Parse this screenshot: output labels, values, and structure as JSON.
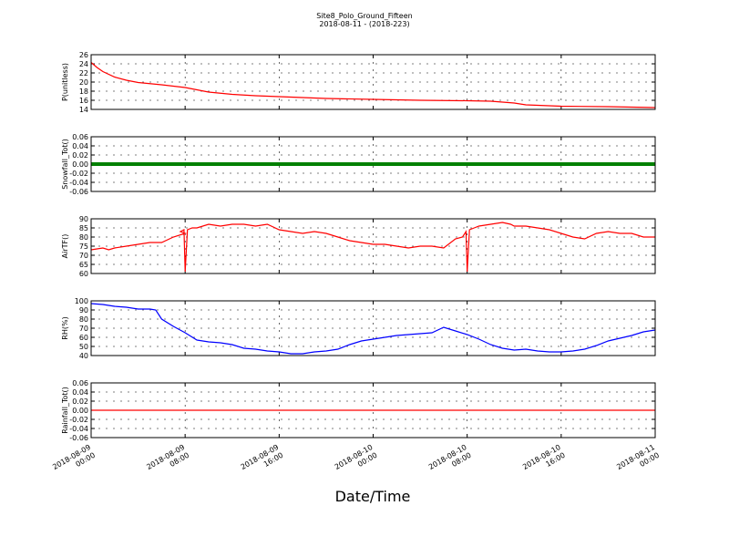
{
  "title": "Site8_Polo_Ground_Fifteen",
  "subtitle": "2018-08-11 - (2018-223)",
  "xlabel": "Date/Time",
  "x_ticks": [
    "2018-08-09 00:00",
    "2018-08-09 08:00",
    "2018-08-09 16:00",
    "2018-08-10 00:00",
    "2018-08-10 08:00",
    "2018-08-10 16:00",
    "2018-08-11 00:00"
  ],
  "chart_data": [
    {
      "type": "line",
      "ylabel": "P(unitless)",
      "color": "#ff0000",
      "ylim": [
        14,
        26
      ],
      "yticks": [
        14,
        16,
        18,
        20,
        22,
        24,
        26
      ],
      "grid": true,
      "x_hours": [
        0,
        0.5,
        1,
        2,
        3,
        4,
        6,
        8,
        9,
        10,
        12,
        14,
        16,
        18,
        20,
        24,
        28,
        32,
        34,
        36,
        37,
        40,
        44,
        48
      ],
      "values": [
        24.3,
        23.2,
        22.3,
        21.1,
        20.4,
        19.9,
        19.4,
        18.8,
        18.3,
        17.8,
        17.3,
        17.0,
        16.8,
        16.6,
        16.4,
        16.2,
        16.0,
        15.9,
        15.8,
        15.4,
        15.0,
        14.7,
        14.6,
        14.4
      ]
    },
    {
      "type": "line",
      "ylabel": "Snowfall_Tot()",
      "color": "#008000",
      "ylim": [
        -0.06,
        0.06
      ],
      "yticks": [
        -0.06,
        -0.04,
        -0.02,
        0.0,
        0.02,
        0.04,
        0.06
      ],
      "grid": true,
      "x_hours": [
        0,
        48
      ],
      "values": [
        0,
        0
      ]
    },
    {
      "type": "line",
      "ylabel": "AirTF()",
      "color": "#ff0000",
      "ylim": [
        60,
        90
      ],
      "yticks": [
        60,
        65,
        70,
        75,
        80,
        85,
        90
      ],
      "grid": true,
      "x_hours": [
        0,
        1,
        1.5,
        2,
        3,
        4,
        5,
        6,
        7,
        8,
        7.6,
        7.9,
        8,
        8.2,
        8.6,
        9,
        10,
        11,
        12,
        13,
        14,
        15,
        16,
        17,
        18,
        19,
        20,
        21,
        22,
        23,
        24,
        25,
        26,
        27,
        28,
        29,
        30,
        31,
        31.6,
        31.9,
        32,
        32.2,
        32.6,
        33,
        34,
        35,
        35.7,
        36,
        37,
        38,
        39,
        40,
        41,
        42,
        43,
        44,
        45,
        46,
        47,
        48
      ],
      "values": [
        73,
        74,
        73,
        74,
        75,
        76,
        77,
        77,
        80,
        82,
        83,
        84,
        61,
        84,
        85,
        85,
        87,
        86,
        87,
        87,
        86,
        87,
        84,
        83,
        82,
        83,
        82,
        80,
        78,
        77,
        76,
        76,
        75,
        74,
        75,
        75,
        74,
        79,
        80,
        83,
        61,
        84,
        85,
        86,
        87,
        88,
        87,
        86,
        86,
        85,
        84,
        82,
        80,
        79,
        82,
        83,
        82,
        82,
        80,
        80
      ]
    },
    {
      "type": "line",
      "ylabel": "RH(%)",
      "color": "#0000ff",
      "ylim": [
        40,
        100
      ],
      "yticks": [
        40,
        50,
        60,
        70,
        80,
        90,
        100
      ],
      "grid": true,
      "x_hours": [
        0,
        1,
        2,
        3,
        4,
        5,
        5.5,
        6,
        7,
        8,
        9,
        10,
        11,
        12,
        13,
        14,
        15,
        16,
        17,
        18,
        19,
        20,
        21,
        22,
        23,
        24,
        25,
        26,
        27,
        28,
        29,
        30,
        31,
        32,
        33,
        34,
        35,
        36,
        37,
        38,
        39,
        40,
        41,
        42,
        43,
        44,
        45,
        46,
        47,
        48
      ],
      "values": [
        97,
        96,
        94,
        93,
        91,
        91,
        90,
        80,
        72,
        65,
        57,
        55,
        54,
        52,
        48,
        47,
        45,
        44,
        42,
        42,
        44,
        45,
        47,
        52,
        56,
        58,
        60,
        62,
        63,
        64,
        65,
        71,
        67,
        63,
        58,
        52,
        48,
        46,
        47,
        45,
        44,
        44,
        45,
        47,
        51,
        56,
        59,
        62,
        66,
        68
      ]
    },
    {
      "type": "line",
      "ylabel": "Rainfall_Tot()",
      "color": "#ff0000",
      "ylim": [
        -0.06,
        0.06
      ],
      "yticks": [
        -0.06,
        -0.04,
        -0.02,
        0.0,
        0.02,
        0.04,
        0.06
      ],
      "grid": true,
      "x_hours": [
        0,
        48
      ],
      "values": [
        0,
        0
      ]
    }
  ]
}
